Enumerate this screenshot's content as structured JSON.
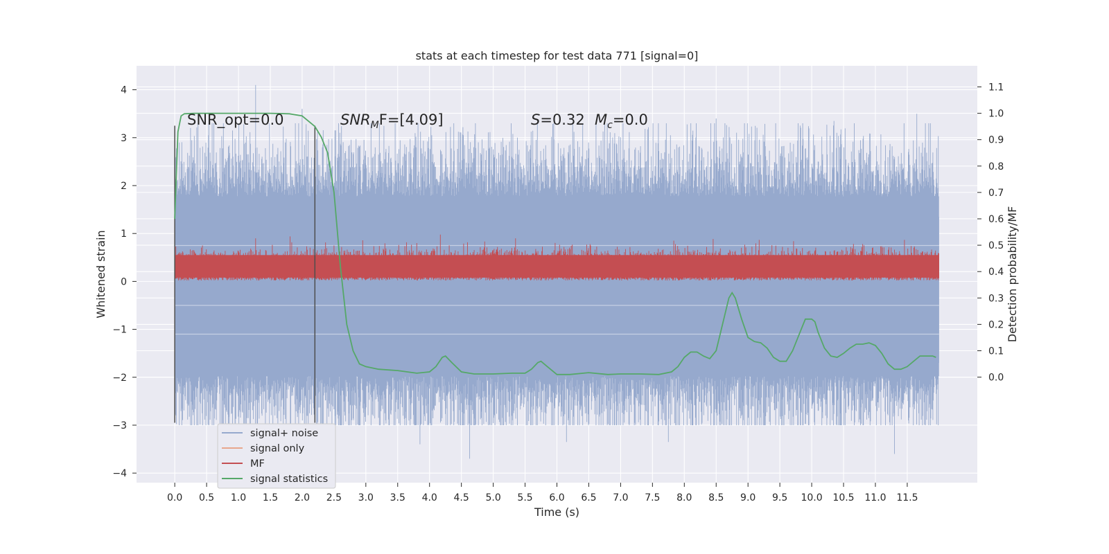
{
  "chart_data": {
    "type": "line",
    "title": "stats at each timestep for test data 771 [signal=0]",
    "xlabel": "Time (s)",
    "ylabel": "Whitened strain",
    "ylabel_right": "Detection probability/MF",
    "xlim": [
      -0.6,
      12.6
    ],
    "ylim": [
      -4.2,
      4.5
    ],
    "ylim_right": [
      -0.4,
      1.18
    ],
    "x_ticks": [
      "0.0",
      "0.5",
      "1.0",
      "1.5",
      "2.0",
      "2.5",
      "3.0",
      "3.5",
      "4.0",
      "4.5",
      "5.0",
      "5.5",
      "6.0",
      "6.5",
      "7.0",
      "7.5",
      "8.0",
      "8.5",
      "9.0",
      "9.5",
      "10.0",
      "10.5",
      "11.0",
      "11.5"
    ],
    "y_ticks": [
      "4",
      "3",
      "2",
      "1",
      "0",
      "−1",
      "−2",
      "−3",
      "−4"
    ],
    "y_ticks_right": [
      "1.1",
      "1.0",
      "0.9",
      "0.8",
      "0.7",
      "0.6",
      "0.5",
      "0.4",
      "0.3",
      "0.2",
      "0.1",
      "0.0"
    ],
    "grid": true,
    "legend_position": "lower-left",
    "annotations": {
      "snr_opt": "SNR_opt=0.0",
      "snr_mf": {
        "base": "SNR",
        "sub": "M",
        "rest": "F=[4.09]"
      },
      "s_value": {
        "base": "S",
        "rest": "=0.32"
      },
      "mc_value": {
        "base": "M",
        "sub": "c",
        "rest": "=0.0"
      }
    },
    "markers": {
      "x": [
        0.0,
        2.2
      ],
      "y_range": [
        -2.95,
        3.25
      ]
    },
    "noise_band": {
      "x_range": [
        0.0,
        12.0
      ],
      "typical_amplitude": 2.0,
      "max": 4.1,
      "min": -3.7
    },
    "series": [
      {
        "name": "signal+ noise",
        "color": "#96a9cd",
        "axis": "left",
        "note_values": "dense noise, amplitude ~±2.3, spikes to 4.1 / -3.7"
      },
      {
        "name": "signal only",
        "color": "#e8a68c",
        "axis": "left",
        "values": []
      },
      {
        "name": "MF",
        "color": "#c44e52",
        "axis": "left",
        "band": [
          0.0,
          0.9
        ]
      },
      {
        "name": "signal statistics",
        "color": "#55a868",
        "axis": "right",
        "x": [
          0.0,
          0.05,
          0.1,
          0.15,
          0.3,
          0.6,
          1.0,
          1.5,
          1.8,
          2.0,
          2.2,
          2.3,
          2.4,
          2.5,
          2.6,
          2.7,
          2.8,
          2.9,
          3.0,
          3.2,
          3.5,
          3.8,
          4.0,
          4.1,
          4.2,
          4.25,
          4.35,
          4.5,
          4.7,
          5.0,
          5.3,
          5.5,
          5.6,
          5.7,
          5.75,
          5.85,
          6.0,
          6.2,
          6.5,
          6.8,
          7.0,
          7.3,
          7.6,
          7.8,
          7.9,
          8.0,
          8.1,
          8.2,
          8.3,
          8.4,
          8.5,
          8.6,
          8.7,
          8.75,
          8.8,
          8.9,
          9.0,
          9.1,
          9.2,
          9.3,
          9.4,
          9.5,
          9.6,
          9.7,
          9.8,
          9.9,
          10.0,
          10.05,
          10.1,
          10.2,
          10.3,
          10.4,
          10.5,
          10.6,
          10.7,
          10.8,
          10.9,
          11.0,
          11.1,
          11.2,
          11.3,
          11.4,
          11.5,
          11.6,
          11.7,
          11.8,
          11.9,
          11.95
        ],
        "values": [
          0.6,
          0.93,
          0.99,
          0.998,
          1.0,
          1.0,
          1.0,
          1.0,
          0.998,
          0.99,
          0.95,
          0.91,
          0.85,
          0.7,
          0.42,
          0.2,
          0.1,
          0.05,
          0.04,
          0.03,
          0.025,
          0.015,
          0.02,
          0.04,
          0.075,
          0.08,
          0.055,
          0.02,
          0.012,
          0.012,
          0.015,
          0.015,
          0.03,
          0.055,
          0.06,
          0.04,
          0.01,
          0.01,
          0.017,
          0.01,
          0.012,
          0.012,
          0.01,
          0.02,
          0.04,
          0.075,
          0.095,
          0.095,
          0.08,
          0.07,
          0.1,
          0.2,
          0.3,
          0.32,
          0.3,
          0.22,
          0.15,
          0.135,
          0.13,
          0.11,
          0.075,
          0.06,
          0.06,
          0.1,
          0.16,
          0.22,
          0.22,
          0.21,
          0.17,
          0.11,
          0.08,
          0.075,
          0.09,
          0.11,
          0.125,
          0.125,
          0.13,
          0.12,
          0.09,
          0.05,
          0.03,
          0.03,
          0.04,
          0.06,
          0.08,
          0.08,
          0.08,
          0.075
        ]
      }
    ]
  },
  "legend": {
    "items": [
      {
        "label": "signal+ noise",
        "color": "#96a9cd"
      },
      {
        "label": "signal only",
        "color": "#e8a68c"
      },
      {
        "label": "MF",
        "color": "#c44e52"
      },
      {
        "label": "signal statistics",
        "color": "#55a868"
      }
    ]
  },
  "colors": {
    "plot_bg": "#eaeaf2",
    "grid": "#ffffff",
    "text": "#262626",
    "marker": "#4d4d4d"
  }
}
